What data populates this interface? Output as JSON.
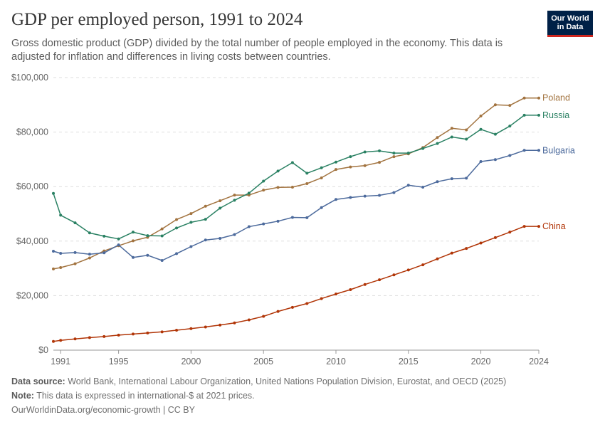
{
  "header": {
    "title": "GDP per employed person, 1991 to 2024",
    "subtitle": "Gross domestic product (GDP) divided by the total number of people employed in the economy. This data is adjusted for inflation and differences in living costs between countries.",
    "logo_line1": "Our World",
    "logo_line2": "in Data",
    "logo_color": "#002147",
    "logo_accent": "#ce261e"
  },
  "chart_data": {
    "type": "line",
    "title": "GDP per employed person, 1991 to 2024",
    "xlabel": "",
    "ylabel": "",
    "xlim": [
      1990.5,
      2024
    ],
    "ylim": [
      0,
      100000
    ],
    "x_ticks": [
      "1991",
      "1995",
      "2000",
      "2005",
      "2010",
      "2015",
      "2020",
      "2024"
    ],
    "x_tick_values": [
      1991,
      1995,
      2000,
      2005,
      2010,
      2015,
      2020,
      2024
    ],
    "y_ticks": [
      "$0",
      "$20,000",
      "$40,000",
      "$60,000",
      "$80,000",
      "$100,000"
    ],
    "y_tick_values": [
      0,
      20000,
      40000,
      60000,
      80000,
      100000
    ],
    "grid": "horizontal dashed",
    "legend": "inline labels at line ends",
    "series": [
      {
        "name": "Poland",
        "color": "#a2733f",
        "x": [
          1990.5,
          1991,
          1992,
          1993,
          1994,
          1995,
          1996,
          1997,
          1998,
          1999,
          2000,
          2001,
          2002,
          2003,
          2004,
          2005,
          2006,
          2007,
          2008,
          2009,
          2010,
          2011,
          2012,
          2013,
          2014,
          2015,
          2016,
          2017,
          2018,
          2019,
          2020,
          2021,
          2022,
          2023,
          2024
        ],
        "values": [
          29800,
          30300,
          31700,
          33800,
          36400,
          38300,
          40100,
          41400,
          44500,
          47900,
          50100,
          52800,
          54800,
          56900,
          56900,
          58700,
          59700,
          59800,
          61100,
          63200,
          66300,
          67200,
          67700,
          68900,
          71000,
          72000,
          74300,
          78000,
          81400,
          80800,
          85900,
          90000,
          89800,
          92500,
          92500
        ]
      },
      {
        "name": "Russia",
        "color": "#2a8163",
        "x": [
          1990.5,
          1991,
          1992,
          1993,
          1994,
          1995,
          1996,
          1997,
          1998,
          1999,
          2000,
          2001,
          2002,
          2003,
          2004,
          2005,
          2006,
          2007,
          2008,
          2009,
          2010,
          2011,
          2012,
          2013,
          2014,
          2015,
          2016,
          2017,
          2018,
          2019,
          2020,
          2021,
          2022,
          2023,
          2024
        ],
        "values": [
          57500,
          49500,
          46700,
          43000,
          41800,
          40800,
          43300,
          42000,
          41900,
          44800,
          46900,
          48000,
          52100,
          55000,
          57600,
          62000,
          65700,
          68800,
          64900,
          66900,
          69000,
          71000,
          72700,
          73100,
          72300,
          72300,
          74000,
          75800,
          78200,
          77400,
          81000,
          79200,
          82200,
          86200,
          86200
        ]
      },
      {
        "name": "Bulgaria",
        "color": "#4c6a9c",
        "x": [
          1990.5,
          1991,
          1992,
          1993,
          1994,
          1995,
          1996,
          1997,
          1998,
          1999,
          2000,
          2001,
          2002,
          2003,
          2004,
          2005,
          2006,
          2007,
          2008,
          2009,
          2010,
          2011,
          2012,
          2013,
          2014,
          2015,
          2016,
          2017,
          2018,
          2019,
          2020,
          2021,
          2022,
          2023,
          2024
        ],
        "values": [
          36300,
          35500,
          35800,
          35200,
          35700,
          38600,
          34000,
          34800,
          32900,
          35400,
          38000,
          40400,
          41000,
          42400,
          45300,
          46300,
          47300,
          48700,
          48600,
          52300,
          55300,
          56000,
          56500,
          56800,
          57800,
          60500,
          59800,
          61800,
          62900,
          63100,
          69200,
          69900,
          71400,
          73300,
          73300
        ]
      },
      {
        "name": "China",
        "color": "#b13507",
        "x": [
          1990.5,
          1991,
          1992,
          1993,
          1994,
          1995,
          1996,
          1997,
          1998,
          1999,
          2000,
          2001,
          2002,
          2003,
          2004,
          2005,
          2006,
          2007,
          2008,
          2009,
          2010,
          2011,
          2012,
          2013,
          2014,
          2015,
          2016,
          2017,
          2018,
          2019,
          2020,
          2021,
          2022,
          2023,
          2024
        ],
        "values": [
          3200,
          3600,
          4100,
          4600,
          5000,
          5500,
          5900,
          6300,
          6700,
          7300,
          7900,
          8500,
          9200,
          10000,
          11100,
          12400,
          14200,
          15700,
          17100,
          18900,
          20600,
          22200,
          24100,
          25800,
          27600,
          29400,
          31300,
          33500,
          35600,
          37300,
          39300,
          41300,
          43300,
          45400,
          45400
        ]
      }
    ]
  },
  "footer": {
    "source_label": "Data source:",
    "source_text": " World Bank, International Labour Organization, United Nations Population Division, Eurostat, and OECD (2025)",
    "note_label": "Note:",
    "note_text": " This data is expressed in international-$ at 2021 prices.",
    "link_text": "OurWorldinData.org/economic-growth | CC BY"
  }
}
